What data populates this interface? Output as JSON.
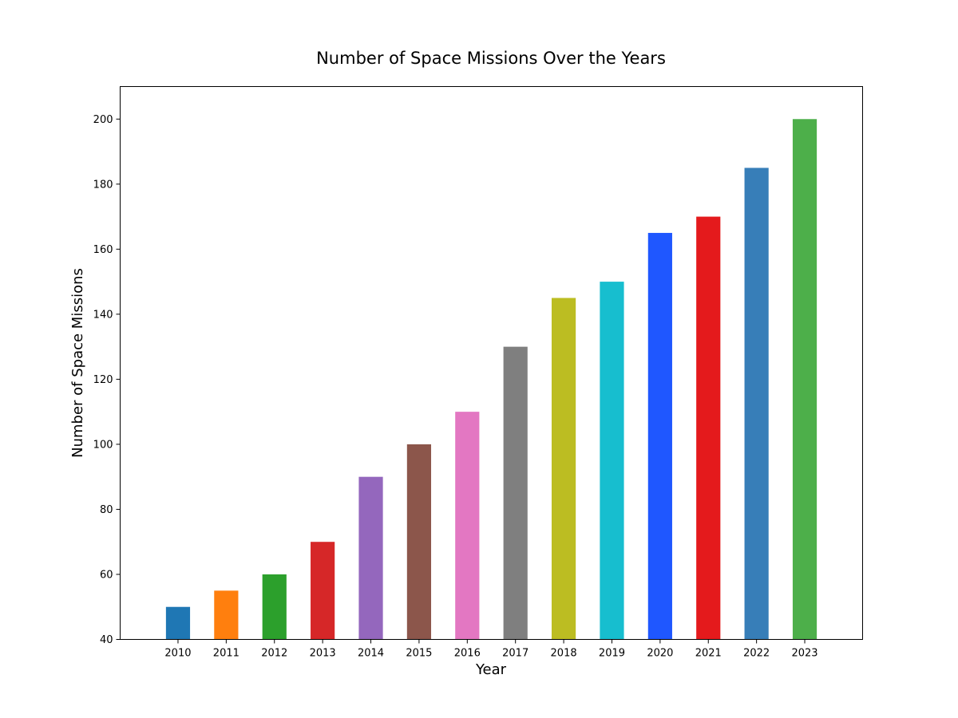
{
  "chart_data": {
    "type": "bar",
    "title": "Number of Space Missions Over the Years",
    "xlabel": "Year",
    "ylabel": "Number of Space Missions",
    "categories": [
      "2010",
      "2011",
      "2012",
      "2013",
      "2014",
      "2015",
      "2016",
      "2017",
      "2018",
      "2019",
      "2020",
      "2021",
      "2022",
      "2023"
    ],
    "values": [
      50,
      55,
      60,
      70,
      90,
      100,
      110,
      130,
      145,
      150,
      165,
      170,
      185,
      200
    ],
    "colors": [
      "#1f77b4",
      "#ff7f0e",
      "#2ca02c",
      "#d62728",
      "#9467bd",
      "#8c564b",
      "#e377c2",
      "#7f7f7f",
      "#bcbd22",
      "#17becf",
      "#1f57ff",
      "#e41a1c",
      "#377eb8",
      "#4daf4a"
    ],
    "ylim": [
      40,
      210
    ],
    "yticks": [
      40,
      60,
      80,
      100,
      120,
      140,
      160,
      180,
      200
    ],
    "grid": false,
    "legend": false
  }
}
